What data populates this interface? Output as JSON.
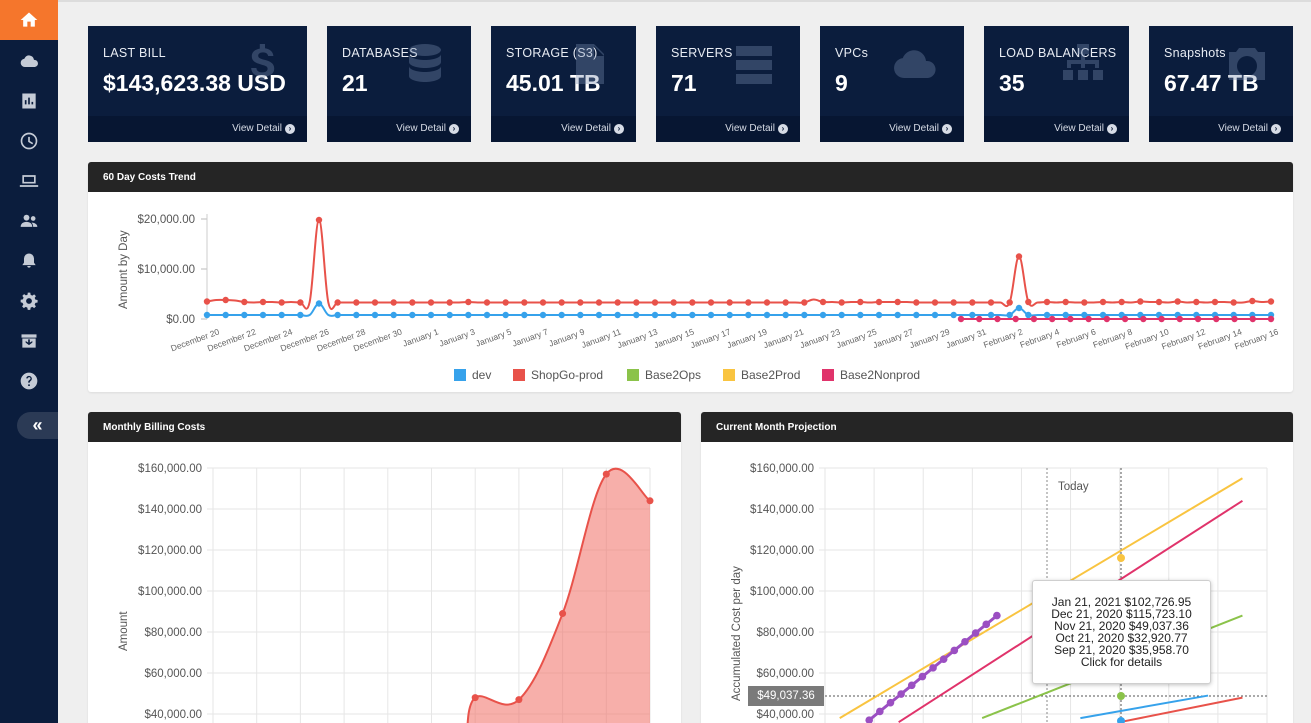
{
  "sidebar": {
    "items": [
      {
        "icon": "home-icon",
        "active": true
      },
      {
        "icon": "cloud-icon"
      },
      {
        "icon": "bar-chart-icon"
      },
      {
        "icon": "clock-icon"
      },
      {
        "icon": "laptop-icon"
      },
      {
        "icon": "users-icon"
      },
      {
        "icon": "bell-icon"
      },
      {
        "icon": "gear-icon"
      },
      {
        "icon": "archive-icon"
      },
      {
        "icon": "help-icon"
      }
    ],
    "collapse_label": "«"
  },
  "cards": [
    {
      "label": "LAST BILL",
      "value": "$143,623.38 USD",
      "detail": "View Detail",
      "icon": "dollar-icon"
    },
    {
      "label": "DATABASES",
      "value": "21",
      "detail": "View Detail",
      "icon": "database-icon"
    },
    {
      "label": "STORAGE (S3)",
      "value": "45.01 TB",
      "detail": "View Detail",
      "icon": "file-icon"
    },
    {
      "label": "SERVERS",
      "value": "71",
      "detail": "View Detail",
      "icon": "server-icon"
    },
    {
      "label": "VPCs",
      "value": "9",
      "detail": "View Detail",
      "icon": "cloud-icon"
    },
    {
      "label": "LOAD BALANCERS",
      "value": "35",
      "detail": "View Detail",
      "icon": "sitemap-icon"
    },
    {
      "label": "Snapshots",
      "value": "67.47 TB",
      "detail": "View Detail",
      "icon": "camera-icon"
    }
  ],
  "trend_panel": {
    "title": "60 Day Costs Trend"
  },
  "monthly_panel": {
    "title": "Monthly Billing Costs"
  },
  "projection_panel": {
    "title": "Current Month Projection",
    "today_label": "Today",
    "marker_value": "$49,037.36",
    "tooltip": [
      "Jan 21, 2021 $102,726.95",
      "Dec 21, 2020 $115,723.10",
      "Nov 21, 2020 $49,037.36",
      "Oct 21, 2020 $32,920.77",
      "Sep 21, 2020 $35,958.70",
      "Click for details"
    ]
  },
  "chart_data": [
    {
      "type": "line",
      "title": "60 Day Costs Trend",
      "ylabel": "Amount by Day",
      "ylim": [
        0,
        20000
      ],
      "yticks": [
        "$0.00",
        "$10,000.00",
        "$20,000.00"
      ],
      "xtick_labels": [
        "December 20",
        "December 22",
        "December 24",
        "December 26",
        "December 28",
        "December 30",
        "January 1",
        "January 3",
        "January 5",
        "January 7",
        "January 9",
        "January 11",
        "January 13",
        "January 15",
        "January 17",
        "January 19",
        "January 21",
        "January 23",
        "January 25",
        "January 27",
        "January 29",
        "January 31",
        "February 2",
        "February 4",
        "February 6",
        "February 8",
        "February 10",
        "February 12",
        "February 14",
        "February 16"
      ],
      "legend": [
        {
          "name": "dev",
          "color": "#36a2eb"
        },
        {
          "name": "ShopGo-prod",
          "color": "#e8524a"
        },
        {
          "name": "Base2Ops",
          "color": "#8bc34a"
        },
        {
          "name": "Base2Prod",
          "color": "#f9c440"
        },
        {
          "name": "Base2Nonprod",
          "color": "#e0336b"
        }
      ],
      "series": [
        {
          "name": "ShopGo-prod",
          "color": "#e8524a",
          "values": [
            3500,
            3800,
            3800,
            3700,
            3400,
            3300,
            3400,
            3400,
            3300,
            3400,
            3300,
            3400,
            19800,
            3300,
            3300,
            3300,
            3300,
            3300,
            3300,
            3300,
            3300,
            3300,
            3300,
            3300,
            3300,
            3300,
            3300,
            3300,
            3400,
            3300,
            3300,
            3300,
            3300,
            3300,
            3300,
            3300,
            3300,
            3300,
            3300,
            3300,
            3300,
            3300,
            3300,
            3300,
            3300,
            3300,
            3300,
            3300,
            3300,
            3300,
            3300,
            3300,
            3300,
            3300,
            3300,
            3300,
            3300,
            3300,
            3300,
            3300,
            3300,
            3300,
            3300,
            3300,
            3300,
            3900,
            3400,
            3400,
            3300,
            3400,
            3400,
            3300,
            3400,
            3400,
            3400,
            3400,
            3300,
            3300,
            3300,
            3300,
            3300,
            3300,
            3300,
            3300,
            3300,
            3300,
            3300,
            12500,
            3400,
            3300,
            3400,
            3300,
            3400,
            3300,
            3300,
            3300,
            3400,
            3300,
            3400,
            3300,
            3500,
            3400,
            3400,
            3300,
            3500,
            3300,
            3400,
            3300,
            3400,
            3400,
            3300,
            3300,
            3600,
            3400,
            3500
          ]
        },
        {
          "name": "dev",
          "color": "#36a2eb",
          "values": [
            800,
            800,
            800,
            800,
            800,
            800,
            800,
            800,
            800,
            800,
            800,
            800,
            3100,
            800,
            800,
            800,
            800,
            800,
            800,
            800,
            800,
            800,
            800,
            800,
            800,
            800,
            800,
            800,
            800,
            800,
            800,
            800,
            800,
            800,
            800,
            800,
            800,
            800,
            800,
            800,
            800,
            800,
            800,
            800,
            800,
            800,
            800,
            800,
            800,
            800,
            800,
            800,
            800,
            800,
            800,
            800,
            800,
            800,
            800,
            800,
            800,
            800,
            800,
            800,
            800,
            800,
            800,
            800,
            800,
            800,
            800,
            800,
            800,
            800,
            800,
            800,
            800,
            800,
            800,
            800,
            800,
            800,
            800,
            800,
            800,
            800,
            800,
            2200,
            800,
            800,
            800,
            800,
            800,
            800,
            800,
            800,
            800,
            800,
            800,
            800,
            800,
            800,
            800,
            800,
            800,
            800,
            800,
            800,
            800,
            800,
            800,
            800,
            800,
            800,
            800
          ]
        },
        {
          "name": "Base2Nonprod",
          "color": "#e0336b",
          "values": [
            0,
            0,
            0,
            0,
            0,
            0,
            0,
            0,
            0,
            0,
            0,
            0,
            0,
            0,
            0,
            0,
            0,
            0
          ]
        }
      ]
    },
    {
      "type": "area",
      "title": "Monthly Billing Costs",
      "ylabel": "Amount",
      "ylim": [
        40000,
        160000
      ],
      "yticks": [
        "$40,000.00",
        "$60,000.00",
        "$80,000.00",
        "$100,000.00",
        "$120,000.00",
        "$140,000.00",
        "$160,000.00"
      ],
      "series": [
        {
          "name": "",
          "color": "#e8524a",
          "points": [
            [
              6,
              48000
            ],
            [
              7,
              47000
            ],
            [
              8,
              89000
            ],
            [
              9,
              157000
            ],
            [
              10,
              144000
            ]
          ]
        }
      ]
    },
    {
      "type": "line",
      "title": "Current Month Projection",
      "ylabel": "Accumulated Cost per day",
      "ylim": [
        40000,
        160000
      ],
      "yticks": [
        "$40,000.00",
        "$60,000.00",
        "$80,000.00",
        "$100,000.00",
        "$120,000.00",
        "$140,000.00",
        "$160,000.00"
      ],
      "series": [
        {
          "name": "Base2Prod",
          "color": "#f9c440",
          "points": [
            [
              0.3,
              38000
            ],
            [
              8.5,
              155000
            ]
          ]
        },
        {
          "name": "Base2Nonprod",
          "color": "#e0336b",
          "points": [
            [
              1.5,
              36000
            ],
            [
              8.5,
              144000
            ]
          ]
        },
        {
          "name": "Base2Ops",
          "color": "#8bc34a",
          "points": [
            [
              3.2,
              38000
            ],
            [
              8.5,
              88000
            ]
          ]
        },
        {
          "name": "dev",
          "color": "#36a2eb",
          "points": [
            [
              5.2,
              38000
            ],
            [
              7.8,
              49000
            ]
          ]
        },
        {
          "name": "ShopGo-prod",
          "color": "#e8524a",
          "points": [
            [
              6,
              36000
            ],
            [
              8.5,
              48000
            ]
          ]
        },
        {
          "name": "",
          "color": "#9b4fc2",
          "points": [
            [
              0.9,
              37000
            ],
            [
              3.5,
              88000
            ]
          ]
        }
      ]
    }
  ]
}
